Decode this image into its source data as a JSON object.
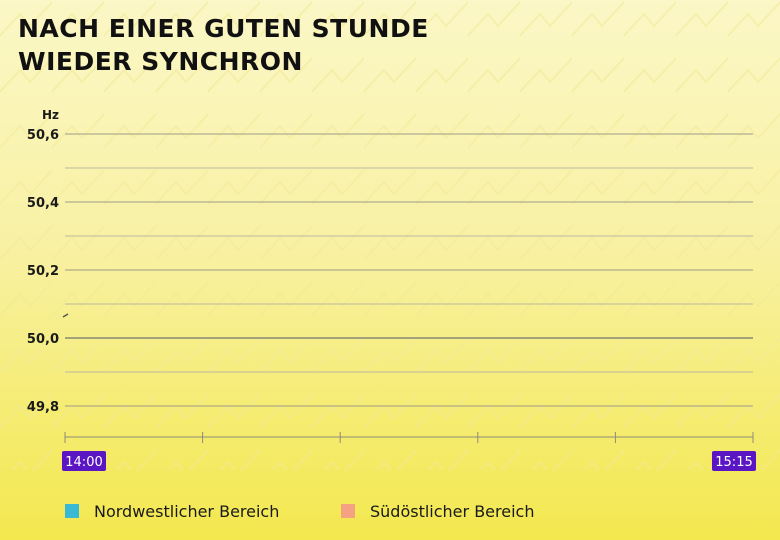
{
  "title_lines": [
    "NACH EINER GUTEN STUNDE",
    "WIEDER SYNCHRON"
  ],
  "colors": {
    "background_top": "#fbf7c6",
    "background_bottom": "#f3e84e",
    "grid_major": "#9f9c86",
    "grid_minor": "#bdb99f",
    "axis_line": "#8f8c78",
    "time_label_bg": "#5b16c4",
    "time_label_text": "#ffffff",
    "nordwest": "#3ab9d6",
    "suedost": "#f4a282"
  },
  "chart_data": {
    "type": "line",
    "unit_label": "Hz",
    "ylim": [
      49.7,
      50.6
    ],
    "y_ticks": [
      {
        "value": 50.6,
        "label": "50,6"
      },
      {
        "value": 50.4,
        "label": "50,4"
      },
      {
        "value": 50.2,
        "label": "50,2"
      },
      {
        "value": 50.0,
        "label": "50,0"
      },
      {
        "value": 49.8,
        "label": "49,8"
      }
    ],
    "y_minor_gridlines": [
      50.5,
      50.3,
      50.1,
      49.9
    ],
    "x_axis": {
      "start_label": "14:00",
      "end_label": "15:15",
      "tick_count": 6
    },
    "series": [
      {
        "name": "Nordwestlicher Bereich",
        "color": "#3ab9d6",
        "values": []
      },
      {
        "name": "Südöstlicher Bereich",
        "color": "#f4a282",
        "values": []
      }
    ],
    "legend_position": "bottom",
    "grid": true
  }
}
